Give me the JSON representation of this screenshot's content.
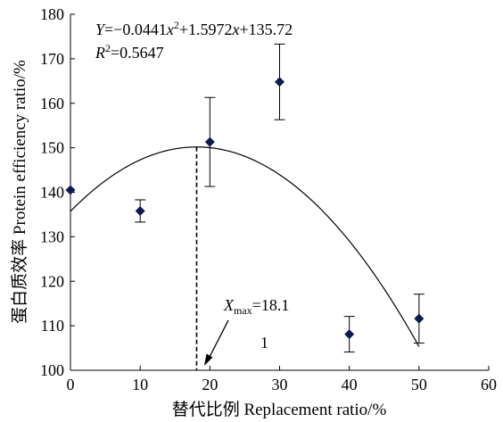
{
  "chart_data": {
    "type": "scatter",
    "xlabel": "替代比例 Replacement ratio/%",
    "ylabel": "蛋白质效率 Protein efficiency ratio/%",
    "xlim": [
      0,
      60
    ],
    "ylim": [
      100,
      180
    ],
    "xticks": [
      0,
      10,
      20,
      30,
      40,
      50,
      60
    ],
    "yticks": [
      100,
      110,
      120,
      130,
      140,
      150,
      160,
      170,
      180
    ],
    "x_tick_labels": [
      "0",
      "10",
      "20",
      "30",
      "40",
      "50",
      "60"
    ],
    "y_tick_labels": [
      "100",
      "110",
      "120",
      "130",
      "140",
      "150",
      "160",
      "170",
      "180"
    ],
    "grid": false,
    "points": [
      {
        "x": 0,
        "y": 140.5,
        "err": null
      },
      {
        "x": 10,
        "y": 135.8,
        "err": 2.5
      },
      {
        "x": 20,
        "y": 151.3,
        "err": 10
      },
      {
        "x": 30,
        "y": 164.8,
        "err": 8.5
      },
      {
        "x": 40,
        "y": 108.1,
        "err": 4
      },
      {
        "x": 50,
        "y": 111.6,
        "err": 5.5
      }
    ],
    "marker_color": "#0d1a4d",
    "fit": {
      "a": -0.0441,
      "b": 1.5972,
      "c": 135.72,
      "x_range": [
        0,
        50
      ],
      "color": "#000000"
    },
    "vline_x": 18.1,
    "annotations": {
      "equation": {
        "Y": "Y",
        "eq_a": "=−0.0441",
        "x1": "x",
        "sup2": "2",
        "eq_b": "+1.5972",
        "x2": "x",
        "eq_c": "+135.72"
      },
      "r2": {
        "R": "R",
        "sup2": "2",
        "value": "=0.5647"
      },
      "xmax": {
        "X": "X",
        "sub": "max",
        "value": "=18.1"
      },
      "label_1": "1"
    }
  }
}
